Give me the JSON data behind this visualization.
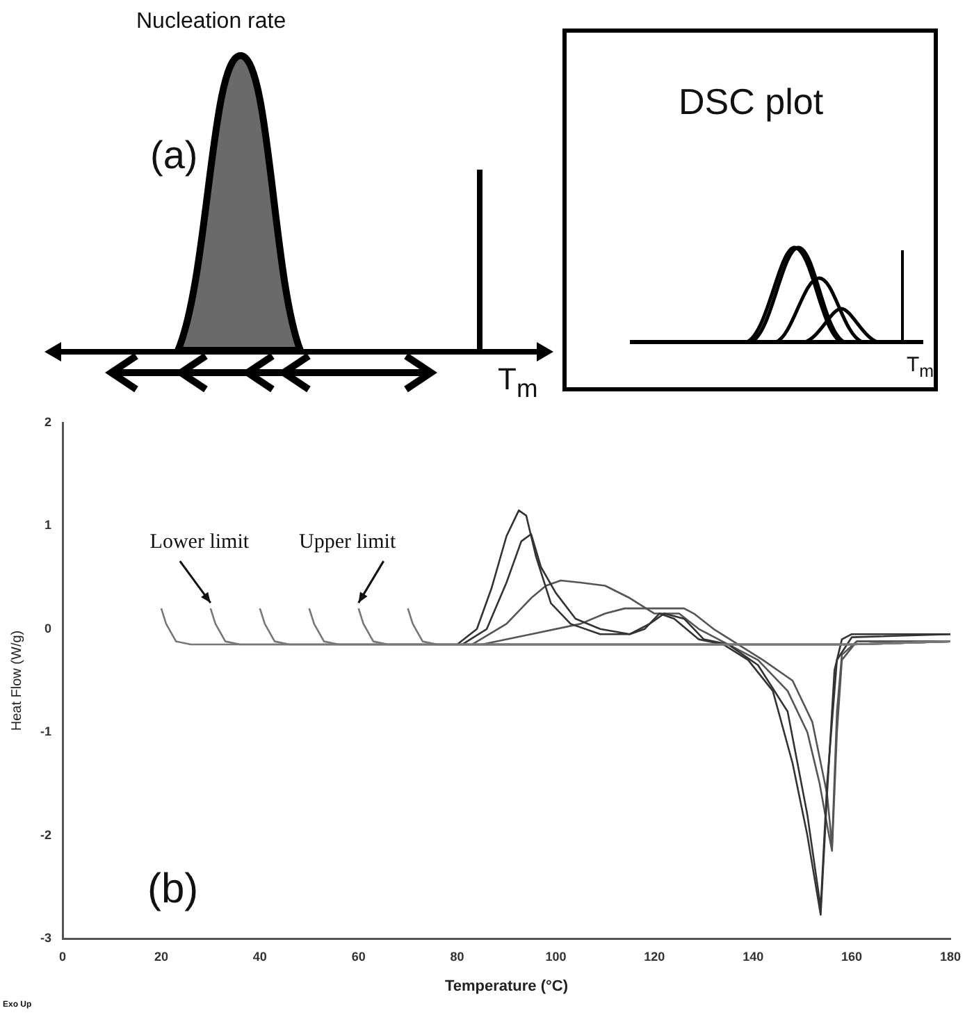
{
  "chart_data": {
    "type": "line",
    "xlabel": "Temperature (°C)",
    "ylabel": "Heat Flow (W/g)",
    "xlim": [
      0,
      180
    ],
    "xticks": [
      0,
      20,
      40,
      60,
      80,
      100,
      120,
      140,
      160,
      180
    ],
    "ylim": [
      -3,
      2
    ],
    "yticks": [
      -3,
      -2,
      -1,
      0,
      1,
      2
    ],
    "grid": false,
    "legend": false,
    "marker": "none",
    "line_style": "solid",
    "series": [
      {
        "color": "#777777",
        "x": [
          20,
          21,
          23,
          26,
          160,
          180
        ],
        "values": [
          0.2,
          0.05,
          -0.12,
          -0.15,
          -0.15,
          -0.12
        ]
      },
      {
        "color": "#777777",
        "x": [
          30,
          31,
          33,
          36,
          160,
          180
        ],
        "values": [
          0.2,
          0.05,
          -0.12,
          -0.15,
          -0.15,
          -0.12
        ]
      },
      {
        "color": "#777777",
        "x": [
          40,
          41,
          43,
          46,
          160,
          180
        ],
        "values": [
          0.2,
          0.05,
          -0.12,
          -0.15,
          -0.15,
          -0.12
        ]
      },
      {
        "color": "#777777",
        "x": [
          50,
          51,
          53,
          56,
          160,
          180
        ],
        "values": [
          0.2,
          0.05,
          -0.12,
          -0.15,
          -0.15,
          -0.12
        ]
      },
      {
        "color": "#777777",
        "x": [
          60,
          61,
          63,
          66,
          160,
          180
        ],
        "values": [
          0.2,
          0.05,
          -0.12,
          -0.15,
          -0.15,
          -0.12
        ]
      },
      {
        "color": "#777777",
        "x": [
          70,
          71,
          73,
          76,
          160,
          180
        ],
        "values": [
          0.2,
          0.05,
          -0.12,
          -0.15,
          -0.15,
          -0.12
        ]
      },
      {
        "color": "#333333",
        "x": [
          80,
          84,
          87,
          90,
          92.5,
          94,
          96,
          99,
          103,
          109,
          115,
          118,
          121,
          124,
          129,
          134,
          139,
          144,
          148,
          151,
          153.7,
          155,
          156.5,
          158,
          160,
          180
        ],
        "values": [
          -0.15,
          0,
          0.4,
          0.9,
          1.15,
          1.1,
          0.7,
          0.25,
          0.05,
          -0.05,
          -0.05,
          0,
          0.15,
          0.1,
          -0.1,
          -0.15,
          -0.3,
          -0.6,
          -1.3,
          -2.0,
          -2.77,
          -1.6,
          -0.4,
          -0.1,
          -0.05,
          -0.05
        ]
      },
      {
        "color": "#333333",
        "x": [
          81,
          86,
          90,
          93,
          95,
          97,
          100,
          104,
          109,
          115,
          119,
          122,
          126,
          130,
          135,
          141,
          147,
          151,
          153.7,
          155,
          157,
          160,
          180
        ],
        "values": [
          -0.15,
          0,
          0.45,
          0.85,
          0.92,
          0.6,
          0.35,
          0.1,
          0,
          -0.05,
          0.05,
          0.15,
          0.1,
          -0.1,
          -0.15,
          -0.35,
          -0.8,
          -1.8,
          -2.7,
          -1.5,
          -0.3,
          -0.08,
          -0.05
        ]
      },
      {
        "color": "#555555",
        "x": [
          83,
          90,
          95,
          98,
          101,
          105,
          110,
          115,
          120,
          125,
          129,
          135,
          141,
          147,
          151,
          153.5,
          155,
          156,
          157,
          158,
          161,
          180
        ],
        "values": [
          -0.15,
          0.05,
          0.3,
          0.42,
          0.47,
          0.45,
          0.42,
          0.3,
          0.15,
          0.15,
          0,
          -0.15,
          -0.3,
          -0.6,
          -1.0,
          -1.5,
          -1.9,
          -2.15,
          -1.0,
          -0.3,
          -0.12,
          -0.12
        ]
      },
      {
        "color": "#555555",
        "x": [
          85,
          95,
          105,
          110,
          114,
          120,
          126,
          128,
          132,
          137,
          142,
          148,
          152,
          155,
          156,
          157,
          158,
          161,
          180
        ],
        "values": [
          -0.15,
          -0.05,
          0.05,
          0.15,
          0.2,
          0.2,
          0.2,
          0.15,
          0,
          -0.15,
          -0.3,
          -0.5,
          -0.9,
          -1.6,
          -2.1,
          -0.8,
          -0.25,
          -0.12,
          -0.12
        ]
      }
    ],
    "annotations": [
      "(a)",
      "Nucleation rate",
      "DSC plot",
      "T$_{m}$",
      "T$_{m}$",
      {
        "text": "Lower limit",
        "x": 30,
        "y": 0.2
      },
      {
        "text": "Upper limit",
        "x": 60,
        "y": 0.2
      },
      "(b)",
      "Exo Up"
    ]
  }
}
